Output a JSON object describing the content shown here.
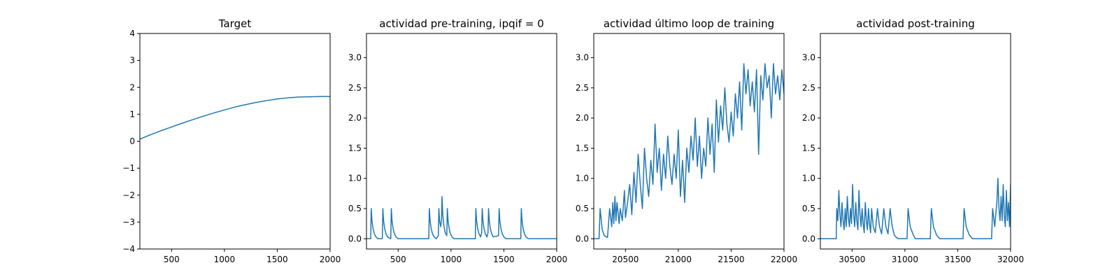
{
  "chart_data": [
    {
      "type": "line",
      "title": "Target",
      "xlim": [
        200,
        2000
      ],
      "ylim": [
        -4,
        4
      ],
      "xticks": [
        500,
        1000,
        1500,
        2000
      ],
      "yticks": [
        -4,
        -3,
        -2,
        -1,
        0,
        1,
        2,
        3,
        4
      ],
      "xtick_labels": [
        "500",
        "1000",
        "1500",
        "2000"
      ],
      "ytick_labels": [
        "−4",
        "−3",
        "−2",
        "−1",
        "0",
        "1",
        "2",
        "3",
        "4"
      ],
      "series": [
        {
          "x": [
            200,
            300,
            400,
            500,
            600,
            700,
            800,
            900,
            1000,
            1100,
            1200,
            1300,
            1400,
            1500,
            1600,
            1700,
            1800,
            1900,
            2000
          ],
          "y": [
            0.08,
            0.24,
            0.39,
            0.53,
            0.67,
            0.8,
            0.93,
            1.05,
            1.16,
            1.27,
            1.36,
            1.44,
            1.51,
            1.57,
            1.61,
            1.64,
            1.65,
            1.66,
            1.66
          ]
        }
      ],
      "color": "#1f77b4"
    },
    {
      "type": "line",
      "title": "actividad pre-training, ipqif = 0",
      "xlim": [
        200,
        2000
      ],
      "ylim": [
        -0.17,
        3.4
      ],
      "xticks": [
        500,
        1000,
        1500,
        2000
      ],
      "yticks": [
        0.0,
        0.5,
        1.0,
        1.5,
        2.0,
        2.5,
        3.0
      ],
      "xtick_labels": [
        "500",
        "1000",
        "1500",
        "2000"
      ],
      "ytick_labels": [
        "0.0",
        "0.5",
        "1.0",
        "1.5",
        "2.0",
        "2.5",
        "3.0"
      ],
      "series": [
        {
          "x": [
            200,
            240,
            245,
            252,
            262,
            275,
            290,
            310,
            350,
            355,
            362,
            372,
            385,
            400,
            430,
            435,
            442,
            452,
            465,
            480,
            500,
            790,
            795,
            802,
            812,
            825,
            840,
            860,
            880,
            885,
            892,
            902,
            910,
            915,
            922,
            932,
            945,
            960,
            965,
            972,
            982,
            995,
            1010,
            1030,
            1230,
            1235,
            1242,
            1252,
            1265,
            1280,
            1290,
            1295,
            1302,
            1312,
            1325,
            1340,
            1350,
            1355,
            1362,
            1372,
            1385,
            1400,
            1450,
            1455,
            1462,
            1472,
            1485,
            1500,
            1520,
            1660,
            1665,
            1672,
            1682,
            1695,
            1710,
            1730,
            1760,
            2000
          ],
          "y": [
            0.0,
            0.0,
            0.5,
            0.3,
            0.17,
            0.08,
            0.03,
            0.0,
            0.0,
            0.5,
            0.3,
            0.17,
            0.08,
            0.03,
            0.0,
            0.5,
            0.3,
            0.17,
            0.08,
            0.03,
            0.0,
            0.0,
            0.5,
            0.3,
            0.17,
            0.08,
            0.03,
            0.0,
            0.05,
            0.5,
            0.3,
            0.2,
            0.3,
            0.7,
            0.4,
            0.22,
            0.1,
            0.05,
            0.5,
            0.3,
            0.17,
            0.08,
            0.03,
            0.0,
            0.0,
            0.5,
            0.3,
            0.17,
            0.08,
            0.03,
            0.1,
            0.5,
            0.3,
            0.17,
            0.08,
            0.03,
            0.1,
            0.5,
            0.3,
            0.17,
            0.08,
            0.03,
            0.05,
            0.5,
            0.3,
            0.17,
            0.08,
            0.03,
            0.0,
            0.0,
            0.5,
            0.3,
            0.17,
            0.08,
            0.03,
            0.0,
            0.0,
            0.0
          ]
        }
      ],
      "color": "#1f77b4"
    },
    {
      "type": "line",
      "title": "actividad último loop de training",
      "xlim": [
        20200,
        22000
      ],
      "ylim": [
        -0.17,
        3.4
      ],
      "xticks": [
        20500,
        21000,
        21500,
        22000
      ],
      "yticks": [
        0.0,
        0.5,
        1.0,
        1.5,
        2.0,
        2.5,
        3.0
      ],
      "xtick_labels": [
        "20500",
        "21000",
        "21500",
        "22000"
      ],
      "ytick_labels": [
        "0.0",
        "0.5",
        "1.0",
        "1.5",
        "2.0",
        "2.5",
        "3.0"
      ],
      "series": [
        {
          "x": [
            20200,
            20250,
            20260,
            20280,
            20300,
            20330,
            20350,
            20370,
            20380,
            20390,
            20400,
            20410,
            20420,
            20440,
            20450,
            20470,
            20490,
            20500,
            20520,
            20540,
            20560,
            20580,
            20600,
            20620,
            20640,
            20660,
            20680,
            20700,
            20720,
            20740,
            20760,
            20780,
            20800,
            20820,
            20840,
            20860,
            20880,
            20900,
            20920,
            20940,
            20960,
            20980,
            21000,
            21020,
            21040,
            21060,
            21080,
            21100,
            21120,
            21140,
            21160,
            21180,
            21200,
            21220,
            21240,
            21260,
            21280,
            21300,
            21320,
            21340,
            21360,
            21380,
            21400,
            21420,
            21440,
            21460,
            21480,
            21500,
            21520,
            21540,
            21560,
            21580,
            21600,
            21620,
            21640,
            21660,
            21680,
            21700,
            21720,
            21740,
            21760,
            21780,
            21800,
            21820,
            21840,
            21860,
            21880,
            21900,
            21920,
            21940,
            21960,
            21980,
            22000
          ],
          "y": [
            0.0,
            0.0,
            0.5,
            0.15,
            0.05,
            0.02,
            0.5,
            0.2,
            0.6,
            0.25,
            0.7,
            0.3,
            0.6,
            0.25,
            0.5,
            0.3,
            0.8,
            0.35,
            0.6,
            0.9,
            0.4,
            1.1,
            0.6,
            1.4,
            0.9,
            0.5,
            1.5,
            1.0,
            0.7,
            1.3,
            0.9,
            1.9,
            1.1,
            1.5,
            0.8,
            1.4,
            1.0,
            1.7,
            1.2,
            0.9,
            1.4,
            1.0,
            1.8,
            0.7,
            1.3,
            0.6,
            1.5,
            1.1,
            1.7,
            1.3,
            2.0,
            1.2,
            1.7,
            1.0,
            1.5,
            1.2,
            2.0,
            1.4,
            1.9,
            1.1,
            2.3,
            1.6,
            2.2,
            1.8,
            2.5,
            1.9,
            1.6,
            2.1,
            1.7,
            2.4,
            2.0,
            2.6,
            1.8,
            2.9,
            2.4,
            2.8,
            2.2,
            2.6,
            2.1,
            2.8,
            1.4,
            2.7,
            2.3,
            2.9,
            2.5,
            2.7,
            2.0,
            2.9,
            2.4,
            2.7,
            2.3,
            2.8,
            2.4
          ]
        }
      ],
      "color": "#1f77b4"
    },
    {
      "type": "line",
      "title": "actividad post-training",
      "xlim": [
        30200,
        32000
      ],
      "ylim": [
        -0.17,
        3.4
      ],
      "xticks": [
        30500,
        31000,
        31500,
        32000
      ],
      "yticks": [
        0.0,
        0.5,
        1.0,
        1.5,
        2.0,
        2.5,
        3.0
      ],
      "xtick_labels": [
        "30500",
        "31000",
        "31500",
        "32000"
      ],
      "ytick_labels": [
        "0.0",
        "0.5",
        "1.0",
        "1.5",
        "2.0",
        "2.5",
        "3.0"
      ],
      "series": [
        {
          "x": [
            30200,
            30350,
            30355,
            30365,
            30375,
            30385,
            30395,
            30405,
            30415,
            30425,
            30435,
            30445,
            30455,
            30465,
            30475,
            30485,
            30495,
            30505,
            30515,
            30525,
            30535,
            30545,
            30555,
            30565,
            30575,
            30585,
            30595,
            30605,
            30615,
            30625,
            30635,
            30645,
            30655,
            30665,
            30675,
            30685,
            30700,
            30720,
            30740,
            30760,
            30780,
            30800,
            30820,
            30840,
            30860,
            30880,
            30900,
            30920,
            30940,
            31020,
            31030,
            31050,
            31080,
            31100,
            31240,
            31250,
            31270,
            31300,
            31330,
            31550,
            31560,
            31580,
            31610,
            31640,
            31820,
            31830,
            31850,
            31870,
            31880,
            31890,
            31900,
            31910,
            31920,
            31930,
            31940,
            31950,
            31960,
            31970,
            31980,
            31990,
            32000
          ],
          "y": [
            0.0,
            0.0,
            0.5,
            0.3,
            0.8,
            0.4,
            0.2,
            0.6,
            0.3,
            0.15,
            0.5,
            0.2,
            0.7,
            0.35,
            0.2,
            0.5,
            0.25,
            0.9,
            0.4,
            0.2,
            0.6,
            0.3,
            0.15,
            0.8,
            0.4,
            0.2,
            0.5,
            0.25,
            0.1,
            0.6,
            0.3,
            0.15,
            0.5,
            0.25,
            0.1,
            0.5,
            0.2,
            0.1,
            0.5,
            0.2,
            0.08,
            0.5,
            0.2,
            0.08,
            0.5,
            0.2,
            0.06,
            0.02,
            0.0,
            0.0,
            0.5,
            0.2,
            0.06,
            0.0,
            0.0,
            0.5,
            0.2,
            0.06,
            0.0,
            0.0,
            0.5,
            0.2,
            0.06,
            0.0,
            0.0,
            0.5,
            0.2,
            0.6,
            1.0,
            0.5,
            0.3,
            0.7,
            0.3,
            0.9,
            0.4,
            0.2,
            0.8,
            0.3,
            0.6,
            0.2,
            0.9
          ]
        }
      ],
      "color": "#1f77b4"
    }
  ]
}
